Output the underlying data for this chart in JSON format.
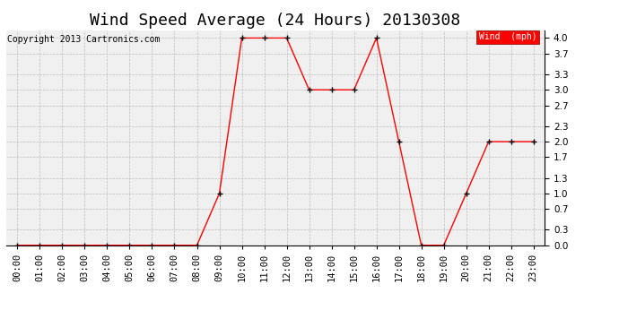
{
  "title": "Wind Speed Average (24 Hours) 20130308",
  "copyright": "Copyright 2013 Cartronics.com",
  "legend_label": "Wind  (mph)",
  "hours": [
    "00:00",
    "01:00",
    "02:00",
    "03:00",
    "04:00",
    "05:00",
    "06:00",
    "07:00",
    "08:00",
    "09:00",
    "10:00",
    "11:00",
    "12:00",
    "13:00",
    "14:00",
    "15:00",
    "16:00",
    "17:00",
    "18:00",
    "19:00",
    "20:00",
    "21:00",
    "22:00",
    "23:00"
  ],
  "values": [
    0.0,
    0.0,
    0.0,
    0.0,
    0.0,
    0.0,
    0.0,
    0.0,
    0.0,
    1.0,
    4.0,
    4.0,
    4.0,
    3.0,
    3.0,
    3.0,
    4.0,
    2.0,
    0.0,
    0.0,
    1.0,
    2.0,
    2.0,
    2.0
  ],
  "line_color": "red",
  "marker_color": "black",
  "bg_color": "#f0f0f0",
  "grid_color": "#bbbbbb",
  "ylim": [
    0.0,
    4.15
  ],
  "yticks": [
    0.0,
    0.3,
    0.7,
    1.0,
    1.3,
    1.7,
    2.0,
    2.3,
    2.7,
    3.0,
    3.3,
    3.7,
    4.0
  ],
  "legend_bg": "red",
  "legend_text_color": "white",
  "title_fontsize": 13,
  "tick_fontsize": 7.5,
  "copyright_fontsize": 7
}
